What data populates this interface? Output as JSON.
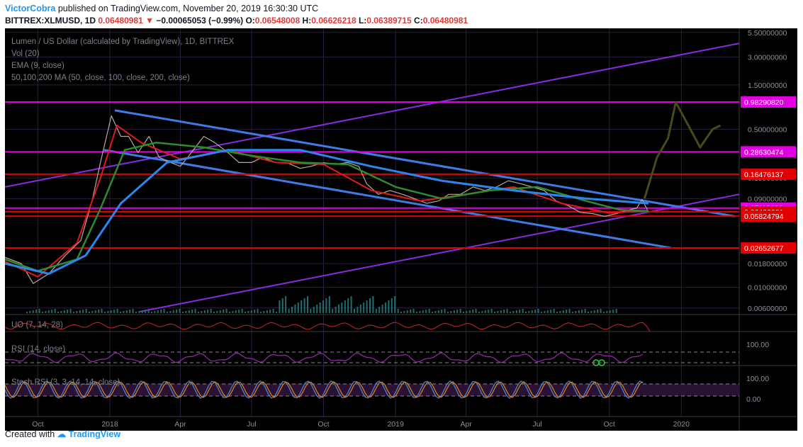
{
  "header": {
    "author": "VictorCobra",
    "published_text": "published on TradingView.com, November 20, 2019 16:30:30 UTC",
    "symbol": "BITTREX:XLMUSD, 1D",
    "last_price": "0.06480981",
    "change_arrow": "▼",
    "change": "−0.00065053 (−0.99%)",
    "ohlc": [
      {
        "key": "O:",
        "value": "0.06548008"
      },
      {
        "key": "H:",
        "value": "0.06626218"
      },
      {
        "key": "L:",
        "value": "0.06389715"
      },
      {
        "key": "C:",
        "value": "0.06480981"
      }
    ]
  },
  "legend": {
    "title": "Lumen / US Dollar (calculated by TradingView), 1D, BITTREX",
    "vol": "Vol (20)",
    "ema": "EMA (9, close)",
    "ma": "50,100,200 MA (50, close, 100, close, 200, close)"
  },
  "indicators": {
    "uo": "UO (7, 14, 28)",
    "rsi": "RSI (14, close)",
    "stoch": "Stoch RSI (3, 3, 14, 14, close)"
  },
  "colors": {
    "background": "#000000",
    "grid": "#2a1f3d",
    "magenta_level": "#e100e1",
    "red_level": "#e00000",
    "purple_channel": "#8a2be2",
    "blue_channel": "#3d7be6",
    "price": "#b8a9a0",
    "ema": "#e01b1b",
    "ma50": "#2e8b2e",
    "ma200": "#2b87f0",
    "projection": "#4a4a18",
    "uo": "#c62828",
    "rsi": "#9c27b0",
    "stoch_k": "#4a7dbb",
    "stoch_d": "#e0821c"
  },
  "chart_data": {
    "type": "line",
    "title": "Lumen / US Dollar (calculated by TradingView), 1D, BITTREX",
    "y_scale": "log",
    "x_ticks": [
      "Oct",
      "2018",
      "Apr",
      "Jul",
      "Oct",
      "2019",
      "Apr",
      "Jul",
      "Oct",
      "2020"
    ],
    "y_ticks": [
      "5.50000000",
      "3.00000000",
      "1.50000000",
      "0.50000000",
      "0.15000000",
      "0.09000000",
      "0.01800000",
      "0.01000000",
      "0.00600000"
    ],
    "price_levels": [
      {
        "label": "0.98290820",
        "value": 0.9829082,
        "color": "magenta"
      },
      {
        "label": "0.28630474",
        "value": 0.28630474,
        "color": "magenta"
      },
      {
        "label": "0.16476137",
        "value": 0.16476137,
        "color": "red"
      },
      {
        "label": "0.07118496",
        "value": 0.07118496,
        "color": "magenta"
      },
      {
        "label": "0.06480981",
        "value": 0.06480981,
        "color": "red"
      },
      {
        "label": "0.05824794",
        "value": 0.05824794,
        "color": "red"
      },
      {
        "label": "0.02652677",
        "value": 0.02652677,
        "color": "red"
      }
    ],
    "series": [
      {
        "name": "XLMUSD",
        "x": [
          "2017-08-20",
          "2017-09-10",
          "2017-09-25",
          "2017-10-15",
          "2017-11-05",
          "2017-11-25",
          "2017-12-10",
          "2017-12-20",
          "2018-01-03",
          "2018-01-15",
          "2018-01-25",
          "2018-02-06",
          "2018-02-20",
          "2018-03-05",
          "2018-03-20",
          "2018-04-01",
          "2018-04-15",
          "2018-05-01",
          "2018-05-15",
          "2018-06-01",
          "2018-06-15",
          "2018-07-01",
          "2018-07-15",
          "2018-08-01",
          "2018-08-15",
          "2018-09-01",
          "2018-09-15",
          "2018-10-01",
          "2018-10-15",
          "2018-11-01",
          "2018-11-15",
          "2018-11-25",
          "2018-12-10",
          "2018-12-25",
          "2019-01-10",
          "2019-01-25",
          "2019-02-10",
          "2019-02-25",
          "2019-03-10",
          "2019-03-25",
          "2019-04-10",
          "2019-04-25",
          "2019-05-10",
          "2019-05-25",
          "2019-06-10",
          "2019-06-25",
          "2019-07-10",
          "2019-07-25",
          "2019-08-10",
          "2019-08-25",
          "2019-09-10",
          "2019-09-25",
          "2019-10-10",
          "2019-10-25",
          "2019-11-05",
          "2019-11-12",
          "2019-11-20"
        ],
        "y": [
          0.021,
          0.018,
          0.011,
          0.014,
          0.022,
          0.032,
          0.09,
          0.22,
          0.7,
          0.42,
          0.42,
          0.28,
          0.42,
          0.25,
          0.22,
          0.2,
          0.28,
          0.42,
          0.36,
          0.28,
          0.22,
          0.22,
          0.25,
          0.22,
          0.22,
          0.19,
          0.2,
          0.22,
          0.21,
          0.22,
          0.2,
          0.13,
          0.1,
          0.11,
          0.1,
          0.09,
          0.08,
          0.085,
          0.1,
          0.1,
          0.12,
          0.11,
          0.12,
          0.14,
          0.13,
          0.12,
          0.11,
          0.085,
          0.075,
          0.064,
          0.062,
          0.058,
          0.062,
          0.068,
          0.071,
          0.088,
          0.0648
        ]
      },
      {
        "name": "EMA (9, close)",
        "x": [
          "2017-08-20",
          "2017-10-01",
          "2017-11-20",
          "2017-12-20",
          "2018-01-10",
          "2018-02-10",
          "2018-04-01",
          "2018-06-01",
          "2018-08-01",
          "2018-10-01",
          "2018-12-01",
          "2019-02-01",
          "2019-04-01",
          "2019-06-01",
          "2019-08-01",
          "2019-10-01",
          "2019-11-20"
        ],
        "y": [
          0.019,
          0.013,
          0.03,
          0.15,
          0.55,
          0.36,
          0.24,
          0.3,
          0.22,
          0.21,
          0.11,
          0.085,
          0.1,
          0.12,
          0.08,
          0.063,
          0.067
        ]
      },
      {
        "name": "MA 50",
        "x": [
          "2017-08-20",
          "2017-10-01",
          "2017-11-20",
          "2017-12-20",
          "2018-01-20",
          "2018-03-01",
          "2018-05-01",
          "2018-07-01",
          "2018-09-01",
          "2018-11-01",
          "2019-01-01",
          "2019-03-01",
          "2019-05-01",
          "2019-07-01",
          "2019-09-01",
          "2019-10-15",
          "2019-11-20"
        ],
        "y": [
          0.02,
          0.015,
          0.02,
          0.07,
          0.3,
          0.36,
          0.32,
          0.26,
          0.22,
          0.21,
          0.12,
          0.09,
          0.11,
          0.12,
          0.085,
          0.068,
          0.066
        ]
      },
      {
        "name": "MA 200",
        "x": [
          "2017-08-20",
          "2017-10-15",
          "2017-12-01",
          "2018-01-15",
          "2018-03-15",
          "2018-06-01",
          "2018-09-01",
          "2018-12-01",
          "2019-03-01",
          "2019-06-01",
          "2019-09-01",
          "2019-11-20"
        ],
        "y": [
          0.018,
          0.014,
          0.022,
          0.08,
          0.22,
          0.3,
          0.3,
          0.2,
          0.14,
          0.11,
          0.09,
          0.08
        ]
      }
    ],
    "projection": {
      "x": [
        "2019-11-15",
        "2019-12-01",
        "2019-12-15",
        "2019-12-25",
        "2020-01-10",
        "2020-01-25",
        "2020-02-10",
        "2020-02-20"
      ],
      "y": [
        0.09,
        0.25,
        0.4,
        0.98,
        0.55,
        0.32,
        0.5,
        0.55
      ]
    },
    "volume_legend": "Vol (20)",
    "indicators": [
      {
        "name": "UO (7, 14, 28)"
      },
      {
        "name": "RSI (14, close)",
        "y_ticks": [
          "100.00"
        ]
      },
      {
        "name": "Stoch RSI (3, 3, 14, 14, close)",
        "y_ticks": [
          "100.00",
          "0.00"
        ]
      }
    ]
  },
  "footer": {
    "created_with": "Created with",
    "brand": "TradingView"
  }
}
